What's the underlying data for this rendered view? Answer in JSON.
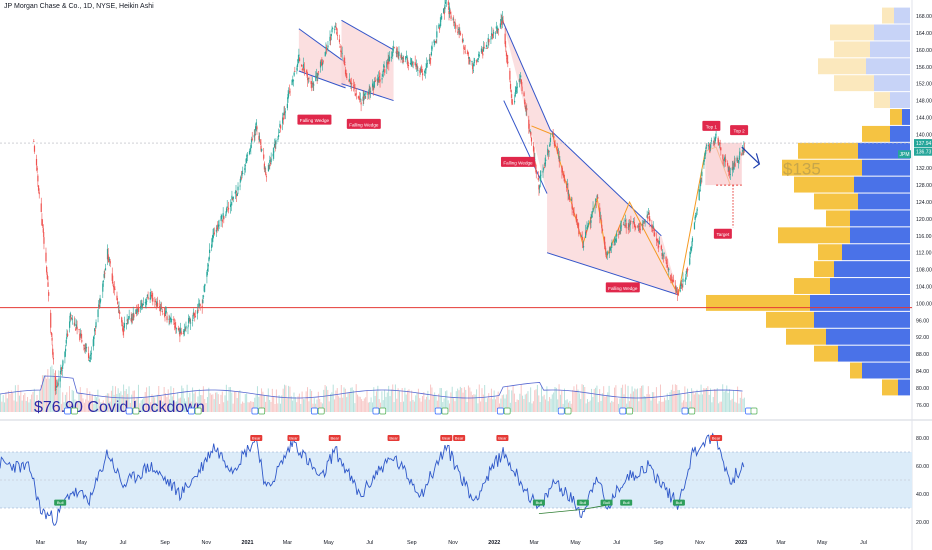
{
  "header": {
    "title": "JP Morgan Chase & Co., 1D, NYSE, Heikin Ashi"
  },
  "colors": {
    "up": "#26a69a",
    "down": "#ef5350",
    "wedge_fill": "#f8c9cc",
    "wedge_line": "#3455c9",
    "hline": "#e53935",
    "vp_up": "#f5c342",
    "vp_down": "#4a72e8",
    "vp_up_light": "#fbe8bd",
    "vp_down_light": "#c7d3f7",
    "rsi_band": "#dcecf9",
    "rsi_line": "#2f58c9",
    "ma_line": "#5567d1",
    "orange": "#f59a23"
  },
  "chart_data": [
    {
      "type": "candlestick",
      "style": "Heikin Ashi",
      "symbol": "JPM",
      "x_ticks": [
        "Mar",
        "May",
        "Jul",
        "Sep",
        "Nov",
        "2021",
        "Mar",
        "May",
        "Jul",
        "Sep",
        "Nov",
        "2022",
        "Mar",
        "May",
        "Jul",
        "Sep",
        "Nov",
        "2023",
        "Mar",
        "May",
        "Jul"
      ],
      "y_ticks": [
        "168.00",
        "164.00",
        "160.00",
        "156.00",
        "152.00",
        "148.00",
        "144.00",
        "140.00",
        "136.00",
        "132.00",
        "128.00",
        "124.00",
        "120.00",
        "116.00",
        "112.00",
        "108.00",
        "104.00",
        "100.00",
        "96.00",
        "92.00",
        "88.00",
        "84.00",
        "80.00",
        "76.00"
      ],
      "y_top_label": "168.00",
      "ylim": [
        75,
        170
      ],
      "price_labels": [
        "137.94",
        "136.73"
      ],
      "symbol_badge": "JPM",
      "anchor_points": [
        {
          "d": "2020-02-20",
          "v": 138
        },
        {
          "d": "2020-02-28",
          "v": 126
        },
        {
          "d": "2020-03-10",
          "v": 108
        },
        {
          "d": "2020-03-23",
          "v": 79
        },
        {
          "d": "2020-04-03",
          "v": 86
        },
        {
          "d": "2020-04-14",
          "v": 97
        },
        {
          "d": "2020-05-14",
          "v": 87
        },
        {
          "d": "2020-06-08",
          "v": 112
        },
        {
          "d": "2020-06-30",
          "v": 94
        },
        {
          "d": "2020-08-10",
          "v": 102
        },
        {
          "d": "2020-09-24",
          "v": 93
        },
        {
          "d": "2020-10-26",
          "v": 100
        },
        {
          "d": "2020-11-10",
          "v": 116
        },
        {
          "d": "2020-12-18",
          "v": 127
        },
        {
          "d": "2021-01-14",
          "v": 142
        },
        {
          "d": "2021-01-29",
          "v": 130
        },
        {
          "d": "2021-03-18",
          "v": 158
        },
        {
          "d": "2021-04-08",
          "v": 151
        },
        {
          "d": "2021-05-10",
          "v": 166
        },
        {
          "d": "2021-05-26",
          "v": 155
        },
        {
          "d": "2021-06-17",
          "v": 148
        },
        {
          "d": "2021-07-15",
          "v": 153
        },
        {
          "d": "2021-08-05",
          "v": 160
        },
        {
          "d": "2021-09-20",
          "v": 154
        },
        {
          "d": "2021-10-22",
          "v": 171
        },
        {
          "d": "2021-11-30",
          "v": 156
        },
        {
          "d": "2022-01-13",
          "v": 167
        },
        {
          "d": "2022-01-28",
          "v": 147
        },
        {
          "d": "2022-02-08",
          "v": 154
        },
        {
          "d": "2022-03-08",
          "v": 128
        },
        {
          "d": "2022-03-28",
          "v": 140
        },
        {
          "d": "2022-05-12",
          "v": 114
        },
        {
          "d": "2022-06-02",
          "v": 125
        },
        {
          "d": "2022-06-16",
          "v": 111
        },
        {
          "d": "2022-07-11",
          "v": 119
        },
        {
          "d": "2022-08-03",
          "v": 118
        },
        {
          "d": "2022-08-16",
          "v": 121
        },
        {
          "d": "2022-09-30",
          "v": 102
        },
        {
          "d": "2022-10-14",
          "v": 108
        },
        {
          "d": "2022-11-09",
          "v": 136
        },
        {
          "d": "2022-11-25",
          "v": 139
        },
        {
          "d": "2022-12-16",
          "v": 131
        },
        {
          "d": "2023-01-06",
          "v": 137
        }
      ],
      "horizontal_line": 99,
      "annotations": [
        "Falling Wedge",
        "Falling Wedge",
        "Falling Wedge",
        "Falling Wedge",
        "Top 1",
        "Top 2",
        "Target"
      ],
      "callouts": {
        "covid_low": "$76.90 Covid Lockdown",
        "target_price": "$135"
      },
      "volume_profile": [
        {
          "price": 168,
          "up": 6,
          "down": 8
        },
        {
          "price": 164,
          "up": 22,
          "down": 18
        },
        {
          "price": 160,
          "up": 18,
          "down": 20
        },
        {
          "price": 156,
          "up": 24,
          "down": 22
        },
        {
          "price": 152,
          "up": 20,
          "down": 18
        },
        {
          "price": 148,
          "up": 8,
          "down": 10
        },
        {
          "price": 144,
          "up": 6,
          "down": 4
        },
        {
          "price": 140,
          "up": 14,
          "down": 10
        },
        {
          "price": 136,
          "up": 30,
          "down": 26
        },
        {
          "price": 132,
          "up": 40,
          "down": 24
        },
        {
          "price": 128,
          "up": 30,
          "down": 28
        },
        {
          "price": 124,
          "up": 22,
          "down": 26
        },
        {
          "price": 120,
          "up": 12,
          "down": 30
        },
        {
          "price": 116,
          "up": 36,
          "down": 30
        },
        {
          "price": 112,
          "up": 12,
          "down": 34
        },
        {
          "price": 108,
          "up": 10,
          "down": 38
        },
        {
          "price": 104,
          "up": 18,
          "down": 40
        },
        {
          "price": 100,
          "up": 52,
          "down": 50
        },
        {
          "price": 96,
          "up": 24,
          "down": 48
        },
        {
          "price": 92,
          "up": 20,
          "down": 42
        },
        {
          "price": 88,
          "up": 12,
          "down": 36
        },
        {
          "price": 84,
          "up": 6,
          "down": 24
        },
        {
          "price": 80,
          "up": 8,
          "down": 6
        }
      ]
    },
    {
      "type": "line",
      "indicator": "RSI",
      "y_ticks": [
        "80.00",
        "60.00",
        "40.00",
        "20.00"
      ],
      "ylim": [
        14,
        86
      ],
      "band": [
        30,
        70
      ],
      "midline": 50,
      "anchor_points": [
        {
          "d": "2020-01-01",
          "v": 62
        },
        {
          "d": "2020-02-15",
          "v": 58
        },
        {
          "d": "2020-03-01",
          "v": 28
        },
        {
          "d": "2020-03-23",
          "v": 22
        },
        {
          "d": "2020-04-15",
          "v": 42
        },
        {
          "d": "2020-05-14",
          "v": 36
        },
        {
          "d": "2020-06-08",
          "v": 70
        },
        {
          "d": "2020-07-01",
          "v": 46
        },
        {
          "d": "2020-08-10",
          "v": 60
        },
        {
          "d": "2020-09-24",
          "v": 40
        },
        {
          "d": "2020-10-20",
          "v": 55
        },
        {
          "d": "2020-11-12",
          "v": 74
        },
        {
          "d": "2020-12-10",
          "v": 58
        },
        {
          "d": "2021-01-14",
          "v": 80
        },
        {
          "d": "2021-01-29",
          "v": 42
        },
        {
          "d": "2021-03-10",
          "v": 78
        },
        {
          "d": "2021-04-20",
          "v": 50
        },
        {
          "d": "2021-05-10",
          "v": 72
        },
        {
          "d": "2021-06-17",
          "v": 38
        },
        {
          "d": "2021-07-15",
          "v": 58
        },
        {
          "d": "2021-08-05",
          "v": 66
        },
        {
          "d": "2021-09-15",
          "v": 40
        },
        {
          "d": "2021-10-22",
          "v": 74
        },
        {
          "d": "2021-12-01",
          "v": 35
        },
        {
          "d": "2022-01-13",
          "v": 70
        },
        {
          "d": "2022-03-08",
          "v": 28
        },
        {
          "d": "2022-04-01",
          "v": 50
        },
        {
          "d": "2022-05-12",
          "v": 26
        },
        {
          "d": "2022-06-02",
          "v": 55
        },
        {
          "d": "2022-06-16",
          "v": 28
        },
        {
          "d": "2022-07-11",
          "v": 50
        },
        {
          "d": "2022-08-16",
          "v": 60
        },
        {
          "d": "2022-09-30",
          "v": 32
        },
        {
          "d": "2022-10-20",
          "v": 68
        },
        {
          "d": "2022-11-09",
          "v": 78
        },
        {
          "d": "2022-11-25",
          "v": 80
        },
        {
          "d": "2022-12-16",
          "v": 48
        },
        {
          "d": "2023-01-06",
          "v": 63
        }
      ],
      "signal_labels": [
        "Bull",
        "Bear"
      ]
    }
  ]
}
